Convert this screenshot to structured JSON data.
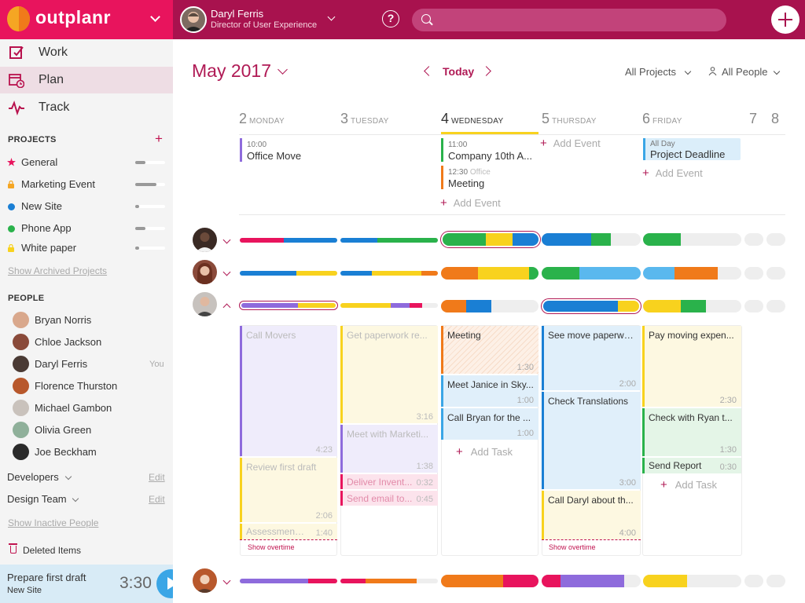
{
  "brand": {
    "name": "outplanr"
  },
  "user": {
    "name": "Daryl Ferris",
    "role": "Director of User Experience"
  },
  "search": {
    "placeholder": ""
  },
  "help_label": "?",
  "nav": [
    {
      "label": "Work",
      "icon": "checkbox-edit-icon"
    },
    {
      "label": "Plan",
      "icon": "calendar-clock-icon"
    },
    {
      "label": "Track",
      "icon": "pulse-icon"
    }
  ],
  "projects": {
    "heading": "PROJECTS",
    "add_label": "+",
    "items": [
      {
        "label": "General",
        "color": "#e8145d",
        "icon": "star-icon",
        "progress": 0.35
      },
      {
        "label": "Marketing Event",
        "color": "#f5a623",
        "icon": "lock-icon",
        "progress": 0.7
      },
      {
        "label": "New Site",
        "color": "#1a7fd4",
        "icon": "dot-icon",
        "progress": 0.05
      },
      {
        "label": "Phone App",
        "color": "#2ab24b",
        "icon": "dot-icon",
        "progress": 0.35
      },
      {
        "label": "White paper",
        "color": "#f8d21e",
        "icon": "lock-icon",
        "progress": 0.05
      }
    ],
    "archived_link": "Show Archived Projects"
  },
  "people": {
    "heading": "PEOPLE",
    "items": [
      {
        "name": "Bryan Norris",
        "note": ""
      },
      {
        "name": "Chloe Jackson",
        "note": ""
      },
      {
        "name": "Daryl Ferris",
        "note": "You"
      },
      {
        "name": "Florence Thurston",
        "note": ""
      },
      {
        "name": "Michael Gambon",
        "note": ""
      },
      {
        "name": "Olivia Green",
        "note": ""
      },
      {
        "name": "Joe Beckham",
        "note": ""
      }
    ],
    "groups": [
      {
        "label": "Developers",
        "edit": "Edit"
      },
      {
        "label": "Design Team",
        "edit": "Edit"
      }
    ],
    "inactive_link": "Show Inactive People"
  },
  "deleted_items": "Deleted Items",
  "timer": {
    "task": "Prepare first draft",
    "project": "New Site",
    "time": "3:30"
  },
  "calendar": {
    "month": "May 2017",
    "today_label": "Today",
    "filters": {
      "projects": "All Projects",
      "people": "All People"
    },
    "days": [
      {
        "num": "2",
        "name": "MONDAY",
        "current": false
      },
      {
        "num": "3",
        "name": "TUESDAY",
        "current": false
      },
      {
        "num": "4",
        "name": "WEDNESDAY",
        "current": true
      },
      {
        "num": "5",
        "name": "THURSDAY",
        "current": false
      },
      {
        "num": "6",
        "name": "FRIDAY",
        "current": false
      },
      {
        "num": "7",
        "name": "",
        "current": false
      },
      {
        "num": "8",
        "name": "",
        "current": false
      }
    ],
    "events": {
      "mon": [
        {
          "time": "10:00",
          "location": "",
          "title": "Office Move",
          "color": "#8e6bdc"
        }
      ],
      "wed": [
        {
          "time": "11:00",
          "location": "",
          "title": "Company 10th A...",
          "color": "#2ab24b"
        },
        {
          "time": "12:30",
          "location": "Office",
          "title": "Meeting",
          "color": "#f07a1a"
        }
      ],
      "fri": [
        {
          "time": "All Day",
          "location": "",
          "title": "Project Deadline",
          "color": "#3aa6e6"
        }
      ]
    },
    "add_event_label": "Add Event",
    "add_task_label": "Add Task",
    "overtime_label": "Show overtime",
    "tasks": {
      "mon": [
        {
          "title": "Call Movers",
          "dur": "4:23"
        },
        {
          "title": "Review first draft",
          "dur": "2:06"
        },
        {
          "title": "Assessment...",
          "dur": "1:40"
        }
      ],
      "tue": [
        {
          "title": "Get paperwork re...",
          "dur": "3:16"
        },
        {
          "title": "Meet with Marketi...",
          "dur": "1:38"
        },
        {
          "title": "Deliver Invent...",
          "dur": "0:32"
        },
        {
          "title": "Send email to...",
          "dur": "0:45"
        }
      ],
      "wed": [
        {
          "title": "Meeting",
          "dur": "1:30"
        },
        {
          "title": "Meet Janice in Sky...",
          "dur": "1:00"
        },
        {
          "title": "Call Bryan for the ...",
          "dur": "1:00"
        }
      ],
      "thu": [
        {
          "title": "See move paperwo...",
          "dur": "2:00"
        },
        {
          "title": "Check Translations",
          "dur": "3:00"
        },
        {
          "title": "Call Daryl about th...",
          "dur": "4:00"
        }
      ],
      "fri": [
        {
          "title": "Pay moving expen...",
          "dur": "2:30"
        },
        {
          "title": "Check with Ryan t...",
          "dur": "1:30"
        },
        {
          "title": "Send Report",
          "dur": "0:30"
        }
      ]
    }
  }
}
